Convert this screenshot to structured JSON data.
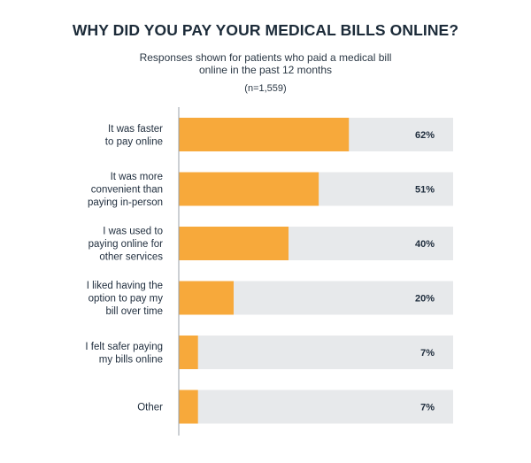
{
  "chart_data": {
    "type": "bar",
    "orientation": "horizontal",
    "title": "WHY DID YOU PAY YOUR MEDICAL BILLS ONLINE?",
    "subtitle": "Responses shown for patients who paid a medical bill online in the past 12 months",
    "sample_size": "(n=1,559)",
    "categories": [
      [
        "It was faster",
        "to pay online"
      ],
      [
        "It was more",
        "convenient than",
        "paying in-person"
      ],
      [
        "I was used to",
        "paying online for",
        "other services"
      ],
      [
        "I liked having the",
        "option to pay my",
        "bill over time"
      ],
      [
        "I felt safer paying",
        "my bills online"
      ],
      [
        "Other"
      ]
    ],
    "values": [
      62,
      51,
      40,
      20,
      7,
      7
    ],
    "value_labels": [
      "62%",
      "51%",
      "40%",
      "20%",
      "7%",
      "7%"
    ],
    "xlim": [
      0,
      100
    ],
    "colors": {
      "bar": "#f7a93b",
      "track": "#e7e9eb",
      "axis": "#9aa1a8"
    },
    "grid": false,
    "legend": "none"
  }
}
